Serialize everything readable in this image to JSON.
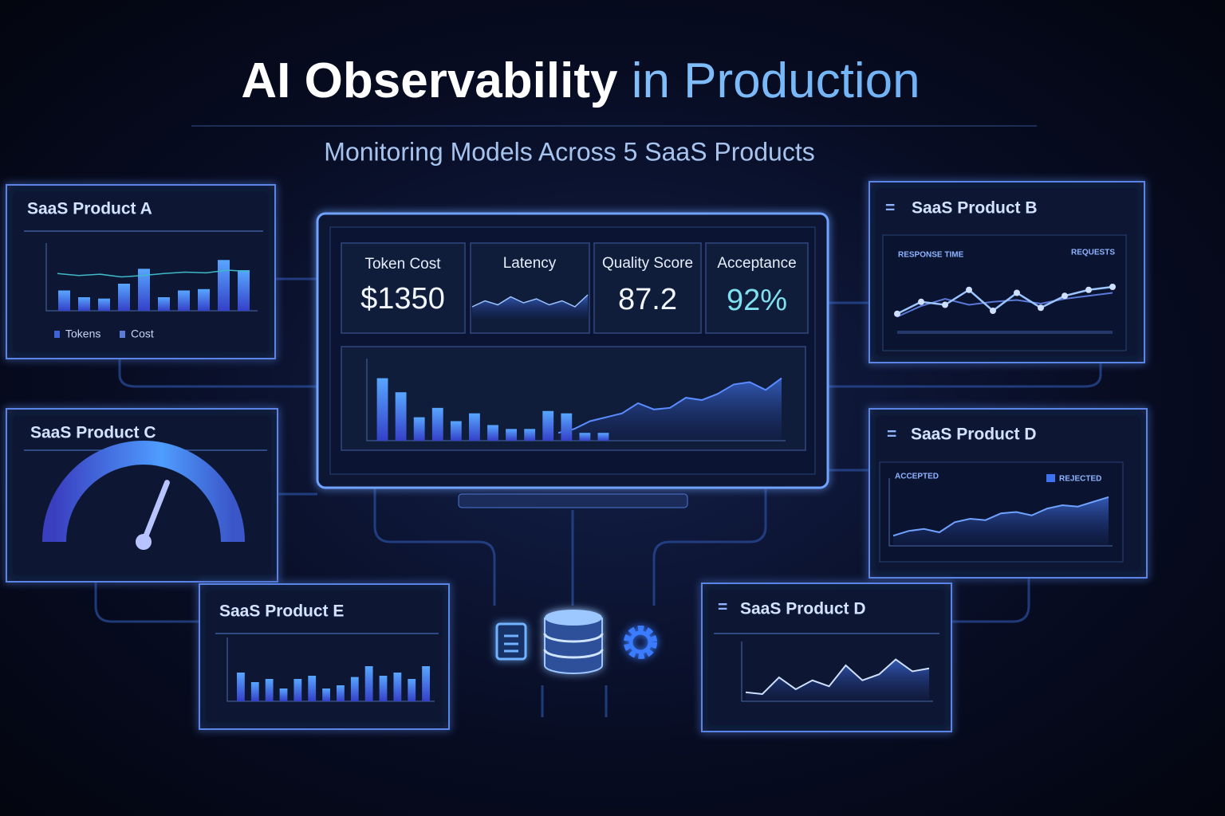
{
  "header": {
    "title": "AI Observability",
    "title_accent": "in Production",
    "subtitle": "Monitoring Models Across 5 SaaS Products"
  },
  "dashboard": {
    "metrics": [
      {
        "label": "Token Cost",
        "value": "$1350"
      },
      {
        "label": "Latency"
      },
      {
        "label": "Quality Score",
        "value": "87.2"
      },
      {
        "label": "Acceptance",
        "value": "92%"
      }
    ],
    "latency_line": [
      30,
      45,
      35,
      55,
      40,
      50,
      35,
      45,
      30,
      60
    ],
    "bars": [
      80,
      62,
      30,
      42,
      25,
      35,
      20,
      15,
      15,
      38,
      35,
      10,
      10
    ],
    "area": [
      10,
      15,
      25,
      30,
      35,
      48,
      40,
      42,
      55,
      52,
      60,
      72,
      75,
      65,
      80
    ],
    "ylim": [
      0,
      100
    ]
  },
  "panels": [
    {
      "title": "SaaS Product A",
      "legend": [
        "Tokens",
        "Cost"
      ],
      "bars": [
        30,
        20,
        18,
        40,
        62,
        20,
        30,
        32,
        75,
        60
      ],
      "line": [
        55,
        52,
        54,
        50,
        52,
        55,
        57,
        56,
        60,
        58
      ],
      "ylim": [
        0,
        100
      ]
    },
    {
      "title": "SaaS Product B",
      "legend": [
        "RESPONSE TIME",
        "REQUESTS"
      ],
      "line": [
        15,
        35,
        30,
        55,
        20,
        50,
        25,
        45,
        55,
        60
      ],
      "line2": [
        10,
        28,
        40,
        30,
        35,
        38,
        32,
        40,
        45,
        50
      ],
      "ylim": [
        0,
        100
      ]
    },
    {
      "title": "SaaS Product C",
      "gauge": 62,
      "ylim": [
        0,
        100
      ]
    },
    {
      "title": "SaaS Product D",
      "legend": [
        "ACCEPTED",
        "REJECTED"
      ],
      "area": [
        15,
        22,
        25,
        20,
        35,
        40,
        38,
        48,
        50,
        45,
        55,
        60,
        58,
        65,
        72
      ],
      "ylim": [
        0,
        100
      ]
    },
    {
      "title": "SaaS Product E",
      "bars": [
        45,
        30,
        35,
        20,
        35,
        40,
        20,
        25,
        38,
        55,
        40,
        45,
        35,
        55
      ],
      "ylim": [
        0,
        100
      ]
    },
    {
      "title": "SaaS Product D",
      "line": [
        15,
        12,
        40,
        20,
        35,
        25,
        60,
        35,
        45,
        70,
        50,
        55
      ],
      "ylim": [
        0,
        100
      ]
    }
  ]
}
